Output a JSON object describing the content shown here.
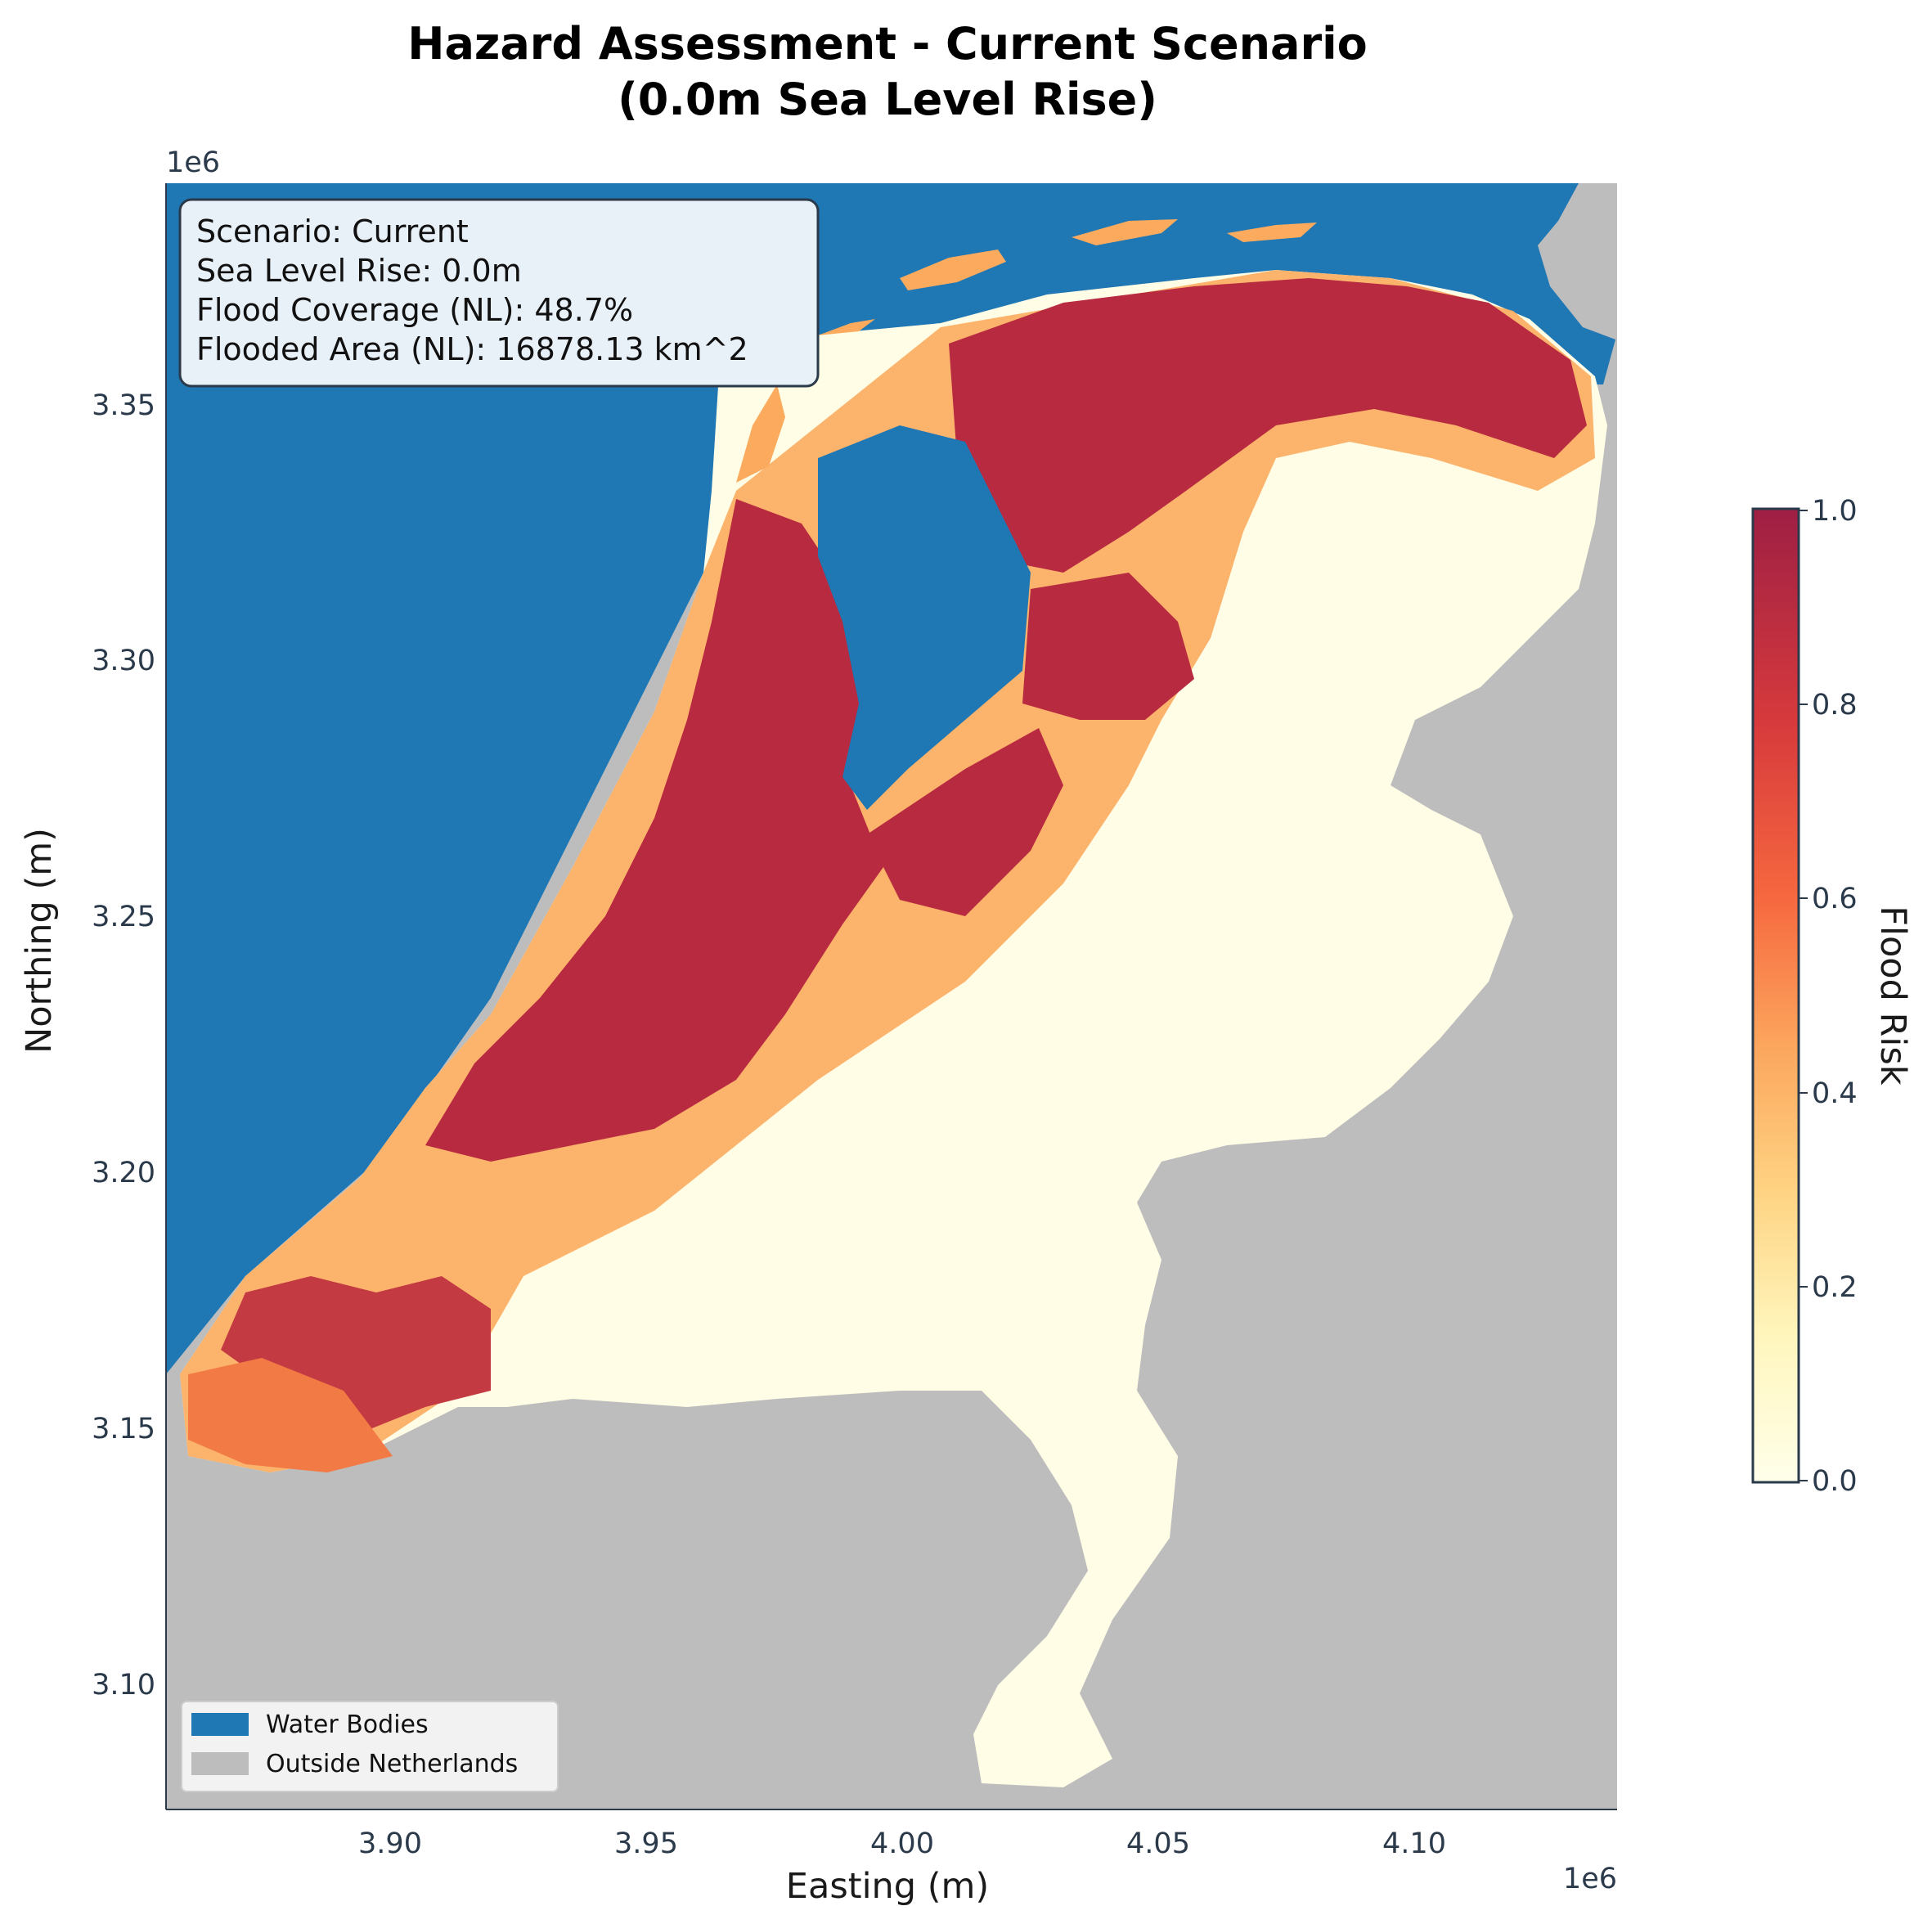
{
  "title": {
    "line1": "Hazard Assessment - Current Scenario",
    "line2": "(0.0m Sea Level Rise)"
  },
  "axes": {
    "xlabel": "Easting (m)",
    "ylabel": "Northing (m)",
    "x_offset": "1e6",
    "y_offset": "1e6",
    "x_ticks": [
      "3.90",
      "3.95",
      "4.00",
      "4.05",
      "4.10"
    ],
    "y_ticks": [
      "3.35",
      "3.30",
      "3.25",
      "3.20",
      "3.15",
      "3.10"
    ]
  },
  "info_box": {
    "scenario": "Scenario: Current",
    "sea_level": "Sea Level Rise: 0.0m",
    "coverage": "Flood Coverage (NL): 48.7%",
    "area": "Flooded Area (NL): 16878.13 km^2"
  },
  "legend": {
    "water": "Water Bodies",
    "outside": "Outside Netherlands"
  },
  "colorbar": {
    "label": "Flood Risk",
    "ticks": [
      "1.0",
      "0.8",
      "0.6",
      "0.4",
      "0.2",
      "0.0"
    ]
  },
  "colors": {
    "water": "#1f77b4",
    "outside": "#bdbdbd",
    "risk_high": "#a51c3a",
    "risk_mid": "#f4753f",
    "risk_low": "#fdb863",
    "risk_none": "#fffde6"
  }
}
